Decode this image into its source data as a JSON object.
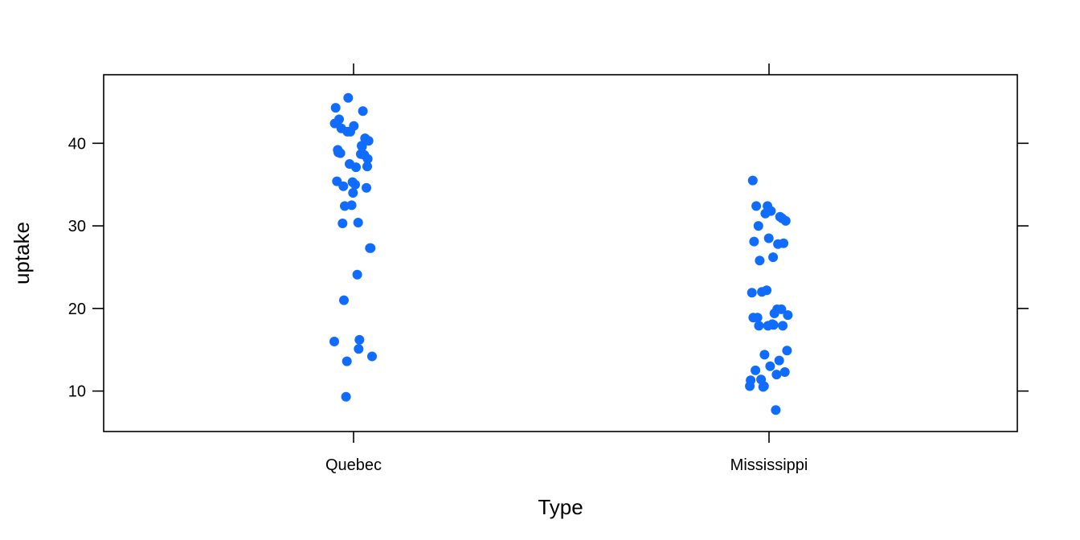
{
  "chart_data": {
    "type": "scatter",
    "title": "",
    "xlabel": "Type",
    "ylabel": "uptake",
    "categories": [
      "Quebec",
      "Mississippi"
    ],
    "y_ticks": [
      10,
      20,
      30,
      40
    ],
    "ylim": [
      5.1,
      48.3
    ],
    "grid": false,
    "legend": "none",
    "point_color": "#0f6cff",
    "series": [
      {
        "category": "Quebec",
        "values": [
          16.0,
          30.4,
          34.8,
          37.2,
          35.3,
          39.2,
          39.7,
          13.6,
          27.3,
          37.1,
          41.8,
          40.6,
          41.4,
          44.3,
          16.2,
          32.4,
          40.3,
          42.1,
          42.9,
          43.9,
          45.5,
          14.2,
          24.1,
          30.3,
          34.6,
          32.5,
          35.4,
          38.7,
          9.3,
          27.3,
          35.0,
          38.8,
          38.6,
          37.5,
          42.4,
          15.1,
          21.0,
          38.1,
          34.0,
          38.9,
          39.6,
          41.4
        ]
      },
      {
        "category": "Mississippi",
        "values": [
          10.6,
          19.2,
          26.2,
          30.0,
          30.9,
          32.4,
          35.5,
          12.0,
          22.0,
          30.6,
          31.8,
          32.4,
          31.1,
          31.5,
          11.3,
          19.4,
          25.8,
          27.9,
          28.5,
          28.1,
          27.8,
          10.5,
          14.9,
          18.1,
          18.9,
          19.9,
          22.2,
          21.9,
          7.7,
          11.4,
          12.3,
          13.0,
          12.5,
          13.7,
          14.4,
          10.6,
          18.0,
          17.9,
          17.9,
          17.9,
          18.9,
          19.9
        ]
      }
    ]
  }
}
